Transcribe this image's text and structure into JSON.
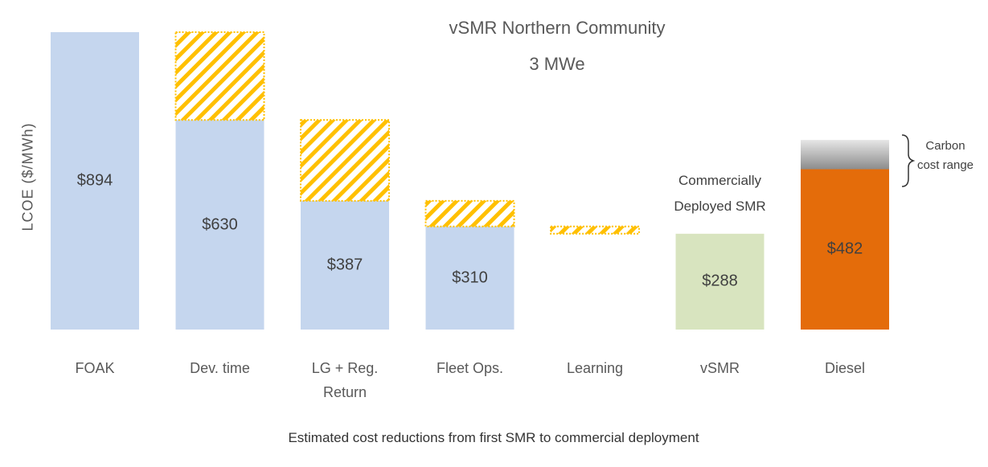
{
  "chart_data": {
    "type": "waterfall",
    "title": "vSMR Northern Community",
    "subtitle": "3 MWe",
    "ylabel": "LCOE ($/MWh)",
    "xlabel": "Estimated cost reductions from first SMR to commercial deployment",
    "categories": [
      "FOAK",
      "Dev. time",
      "LG + Reg. Return",
      "Fleet Ops.",
      "Learning",
      "vSMR",
      "Diesel"
    ],
    "series": [
      {
        "values": [
          894,
          630,
          387,
          310,
          null,
          288,
          482
        ],
        "value_labels": [
          "$894",
          "$630",
          "$387",
          "$310",
          null,
          "$288",
          "$482"
        ],
        "colors": [
          "#c5d6ee",
          "#c5d6ee",
          "#c5d6ee",
          "#c5d6ee",
          null,
          "#d8e4bf",
          "#e46c0a"
        ]
      },
      {
        "values": [
          null,
          264,
          243,
          77,
          22,
          null,
          null
        ],
        "color": "#ffc000",
        "pattern": "hatch"
      },
      {
        "values": [
          null,
          null,
          null,
          null,
          null,
          null,
          88
        ],
        "color": "#8c8c8c",
        "pattern": "gradient"
      }
    ],
    "annotations": [
      {
        "text": "Commercially Deployed SMR",
        "category": 5
      },
      {
        "text": "Carbon cost range",
        "category": 6
      }
    ]
  }
}
